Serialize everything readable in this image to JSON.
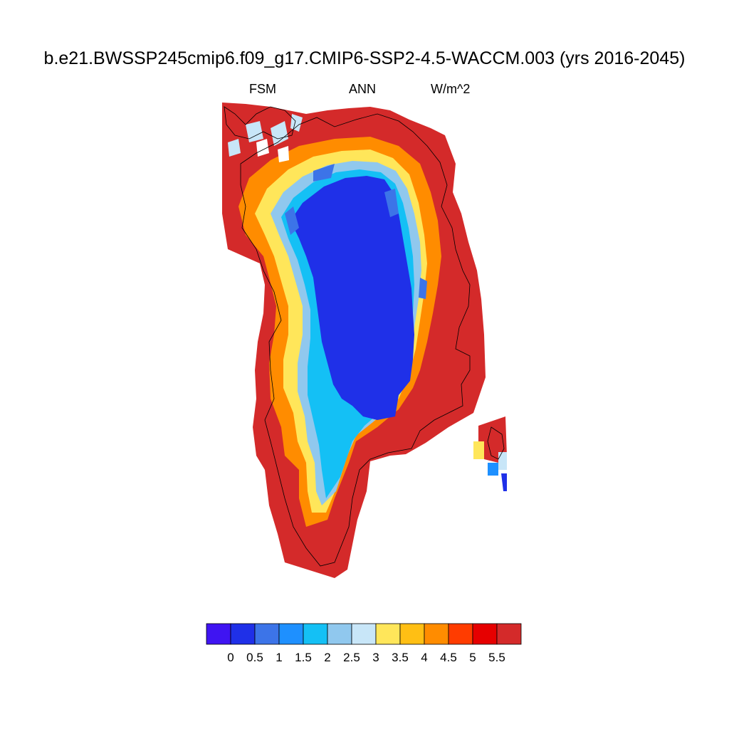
{
  "title": "b.e21.BWSSP245cmip6.f09_g17.CMIP6-SSP2-4.5-WACCM.003 (yrs 2016-2045)",
  "subtitle_left": "FSM",
  "subtitle_center": "ANN",
  "subtitle_right": "W/m^2",
  "colorbar": {
    "colors": [
      "#3f14f2",
      "#1f30e8",
      "#3c74e8",
      "#1e90ff",
      "#14c0f5",
      "#90c8ee",
      "#c8e6f8",
      "#ffe65a",
      "#ffbf14",
      "#ff8c00",
      "#ff3c00",
      "#e60000",
      "#d42a2a"
    ],
    "labels": [
      "0",
      "0.5",
      "1",
      "1.5",
      "2",
      "2.5",
      "3",
      "3.5",
      "4",
      "4.5",
      "5",
      "5.5"
    ]
  }
}
